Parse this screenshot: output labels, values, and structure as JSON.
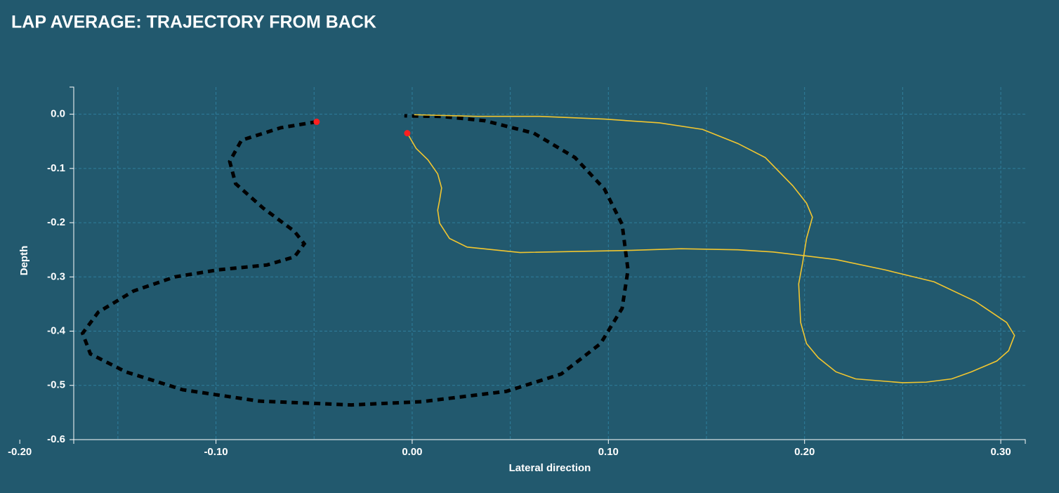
{
  "chart_data": {
    "type": "line",
    "title": "LAP AVERAGE: TRAJECTORY FROM BACK",
    "x_label": "Lateral direction",
    "y_label": "Depth",
    "xlim": [
      -0.1725,
      0.3125
    ],
    "ylim": [
      -0.6,
      0.05
    ],
    "xticks": [
      {
        "value": -0.2,
        "label": "-0.20"
      },
      {
        "value": -0.1,
        "label": "-0.10"
      },
      {
        "value": 0,
        "label": "0.00"
      },
      {
        "value": 0.1,
        "label": "0.10"
      },
      {
        "value": 0.2,
        "label": "0.20"
      },
      {
        "value": 0.3,
        "label": "0.30"
      }
    ],
    "yticks": [
      {
        "value": 0,
        "label": "0.0"
      },
      {
        "value": -0.1,
        "label": "-0.1"
      },
      {
        "value": -0.2,
        "label": "-0.2"
      },
      {
        "value": -0.3,
        "label": "-0.3"
      },
      {
        "value": -0.4,
        "label": "-0.4"
      },
      {
        "value": -0.5,
        "label": "-0.5"
      },
      {
        "value": -0.6,
        "label": "-0.6"
      }
    ],
    "grid": true,
    "marker_color": "#ff2020",
    "series": [
      {
        "color": "#000000",
        "dashed": true,
        "x": [
          -0.0487,
          -0.067,
          -0.087,
          -0.093,
          -0.09,
          -0.076,
          -0.06,
          -0.055,
          -0.06,
          -0.074,
          -0.099,
          -0.121,
          -0.142,
          -0.16,
          -0.168,
          -0.164,
          -0.146,
          -0.117,
          -0.078,
          -0.031,
          0.005,
          0.048,
          0.076,
          0.096,
          0.107,
          0.11,
          0.107,
          0.098,
          0.083,
          0.062,
          0.037,
          0.015,
          -0.004
        ],
        "y": [
          -0.014,
          -0.025,
          -0.048,
          -0.087,
          -0.128,
          -0.173,
          -0.216,
          -0.239,
          -0.263,
          -0.278,
          -0.287,
          -0.3,
          -0.326,
          -0.365,
          -0.404,
          -0.442,
          -0.475,
          -0.508,
          -0.529,
          -0.536,
          -0.53,
          -0.511,
          -0.479,
          -0.423,
          -0.358,
          -0.287,
          -0.203,
          -0.138,
          -0.08,
          -0.035,
          -0.012,
          -0.004,
          -0.003
        ]
      },
      {
        "color": "#f2c62f",
        "dashed": false,
        "x": [
          -0.0025,
          0.002,
          0.008,
          0.013,
          0.015,
          0.014,
          0.013,
          0.014,
          0.019,
          0.028,
          0.055,
          0.112,
          0.137,
          0.166,
          0.184,
          0.216,
          0.241,
          0.266,
          0.287,
          0.303,
          0.307,
          0.304,
          0.298,
          0.285,
          0.275,
          0.262,
          0.25,
          0.226,
          0.216,
          0.207,
          0.201,
          0.198,
          0.197,
          0.199,
          0.201,
          0.204,
          0.201,
          0.194,
          0.18,
          0.166,
          0.148,
          0.126,
          0.098,
          0.065,
          0.033,
          0.001
        ],
        "y": [
          -0.035,
          -0.063,
          -0.084,
          -0.11,
          -0.136,
          -0.158,
          -0.177,
          -0.201,
          -0.229,
          -0.245,
          -0.255,
          -0.251,
          -0.248,
          -0.25,
          -0.254,
          -0.268,
          -0.287,
          -0.309,
          -0.345,
          -0.384,
          -0.408,
          -0.436,
          -0.455,
          -0.475,
          -0.488,
          -0.494,
          -0.495,
          -0.488,
          -0.475,
          -0.449,
          -0.423,
          -0.384,
          -0.313,
          -0.274,
          -0.229,
          -0.19,
          -0.164,
          -0.132,
          -0.08,
          -0.054,
          -0.028,
          -0.016,
          -0.009,
          -0.004,
          -0.004,
          -0.001
        ]
      }
    ]
  }
}
